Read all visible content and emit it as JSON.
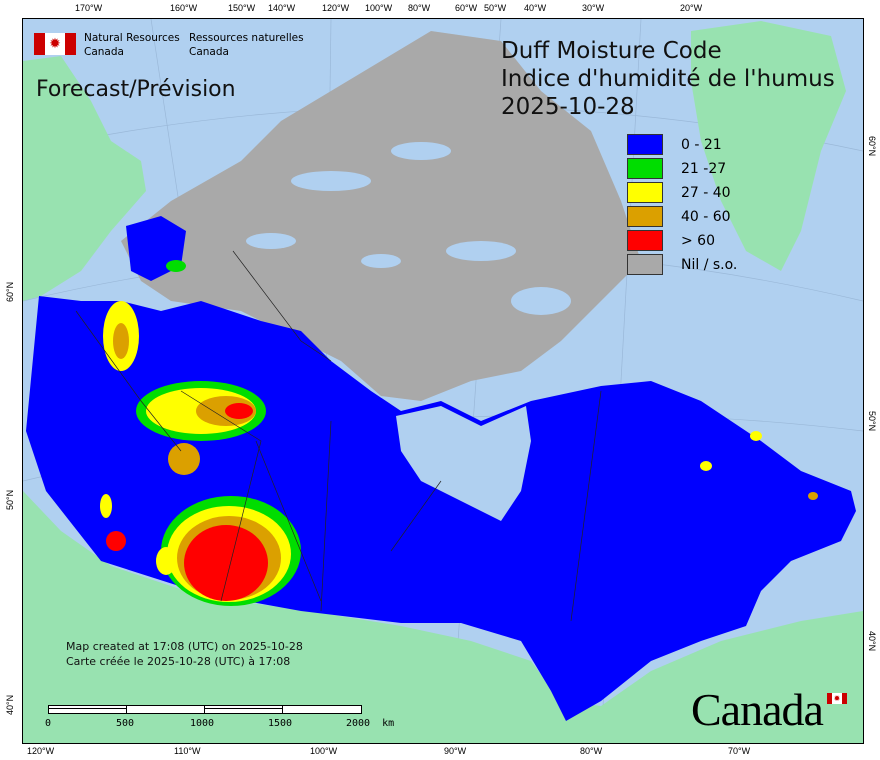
{
  "header": {
    "agency_en": [
      "Natural Resources",
      "Canada"
    ],
    "agency_fr": [
      "Ressources naturelles",
      "Canada"
    ],
    "forecast_label": "Forecast/Prévision",
    "title_en": "Duff Moisture Code",
    "title_fr": "Indice d'humidité de l'humus",
    "date": "2025-10-28"
  },
  "legend": [
    {
      "label": "0 - 21",
      "color": "#0000ff"
    },
    {
      "label": "21 -27",
      "color": "#00dd00"
    },
    {
      "label": "27 - 40",
      "color": "#ffff00"
    },
    {
      "label": "40 - 60",
      "color": "#dba000"
    },
    {
      "label": "> 60",
      "color": "#ff0000"
    },
    {
      "label": "Nil / s.o.",
      "color": "#a9a9a9"
    }
  ],
  "axes": {
    "top_lon": [
      "170°W",
      "160°W",
      "150°W",
      "140°W",
      "120°W",
      "100°W",
      "80°W",
      "60°W",
      "50°W",
      "40°W",
      "30°W",
      "20°W"
    ],
    "bottom_lon": [
      "120°W",
      "110°W",
      "100°W",
      "90°W",
      "80°W",
      "70°W"
    ],
    "left_lat": [
      "60°N",
      "50°N",
      "40°N"
    ],
    "right_lat": [
      "60°N",
      "50°N",
      "40°N"
    ]
  },
  "credit": {
    "en": "Map created at 17:08 (UTC) on 2025-10-28",
    "fr": "Carte créée le 2025-10-28 (UTC) à 17:08"
  },
  "scale_bar": {
    "labels": [
      "0",
      "500",
      "1000",
      "1500",
      "2000  km"
    ]
  },
  "wordmark": "Canada",
  "colors": {
    "ocean": "#b0d0f0",
    "foreign_land": "#98e2b0",
    "no_data": "#a9a9a9"
  }
}
